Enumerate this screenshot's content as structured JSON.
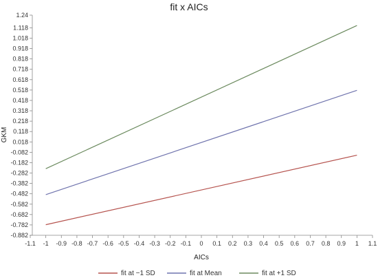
{
  "chart_data": {
    "type": "line",
    "title": "fit x AICs",
    "xlabel": "AICs",
    "ylabel": "GKM",
    "xlim": [
      -1.1,
      1.1
    ],
    "ylim": [
      -0.882,
      1.24
    ],
    "x_ticks": [
      "-1.1",
      "-1",
      "-0.9",
      "-0.8",
      "-0.7",
      "-0.6",
      "-0.5",
      "-0.4",
      "-0.3",
      "-0.2",
      "-0.1",
      "0",
      "0.1",
      "0.2",
      "0.3",
      "0.4",
      "0.5",
      "0.6",
      "0.7",
      "0.8",
      "0.9",
      "1",
      "1.1"
    ],
    "y_ticks": [
      "1.24",
      "1.118",
      "1.018",
      "0.918",
      "0.818",
      "0.718",
      "0.618",
      "0.518",
      "0.418",
      "0.318",
      "0.218",
      "0.118",
      "0.018",
      "-0.082",
      "-0.182",
      "-0.282",
      "-0.382",
      "-0.482",
      "-0.582",
      "-0.682",
      "-0.782",
      "-0.882"
    ],
    "grid": false,
    "legend": "bottom",
    "series": [
      {
        "name": "fit at −1 SD",
        "color": "#b5524d",
        "x": [
          -1,
          1
        ],
        "y": [
          -0.78,
          -0.11
        ]
      },
      {
        "name": "fit at Mean",
        "color": "#6f73ad",
        "x": [
          -1,
          1
        ],
        "y": [
          -0.49,
          0.515
        ]
      },
      {
        "name": "fit at +1 SD",
        "color": "#6b8a5e",
        "x": [
          -1,
          1
        ],
        "y": [
          -0.24,
          1.14
        ]
      }
    ]
  }
}
